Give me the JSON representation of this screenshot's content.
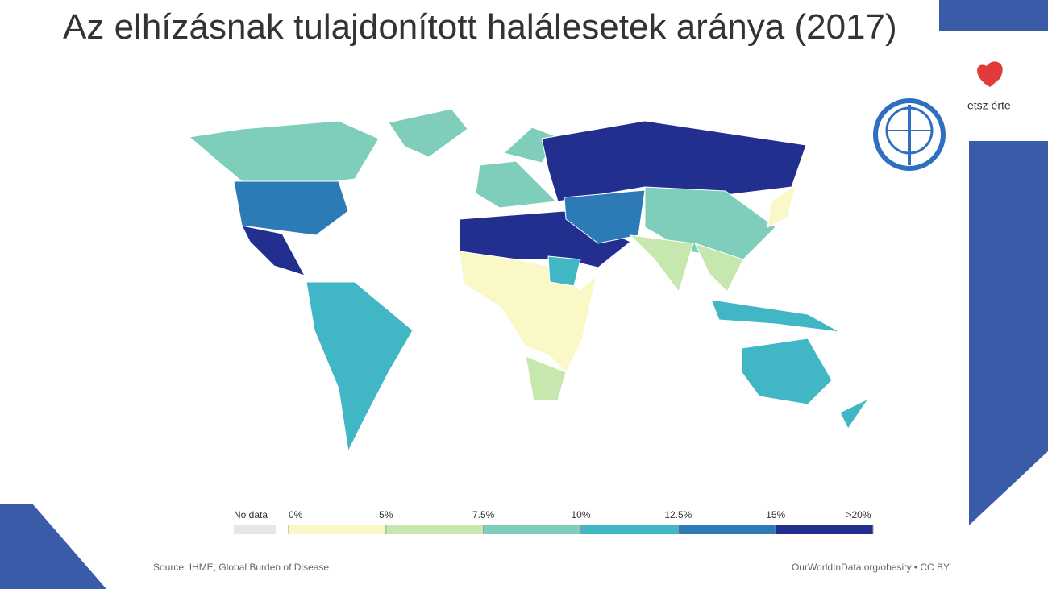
{
  "title": "Az elhízásnak tulajdonított halálesetek aránya (2017)",
  "logo_text": "etsz érte",
  "legend": {
    "no_data_label": "No data",
    "no_data_color": "#e6e6e6",
    "ticks": [
      {
        "value": 0,
        "label": "0%"
      },
      {
        "value": 5,
        "label": "5%"
      },
      {
        "value": 7.5,
        "label": "7.5%"
      },
      {
        "value": 10,
        "label": "10%"
      },
      {
        "value": 12.5,
        "label": "12.5%"
      },
      {
        "value": 15,
        "label": "15%"
      },
      {
        "value": 20,
        "label": ">20%"
      }
    ],
    "colors": [
      "#fbf8c8",
      "#c6e8ae",
      "#7fcdbb",
      "#41b6c4",
      "#2c7bb6",
      "#232f8e"
    ]
  },
  "regions": [
    9,
    8,
    14,
    22,
    11,
    9,
    8,
    22,
    22,
    14,
    9,
    6,
    5,
    3,
    6,
    12,
    11,
    10,
    4,
    10
  ],
  "source": "Source: IHME, Global Burden of Disease",
  "credit": "OurWorldInData.org/obesity • CC BY"
}
